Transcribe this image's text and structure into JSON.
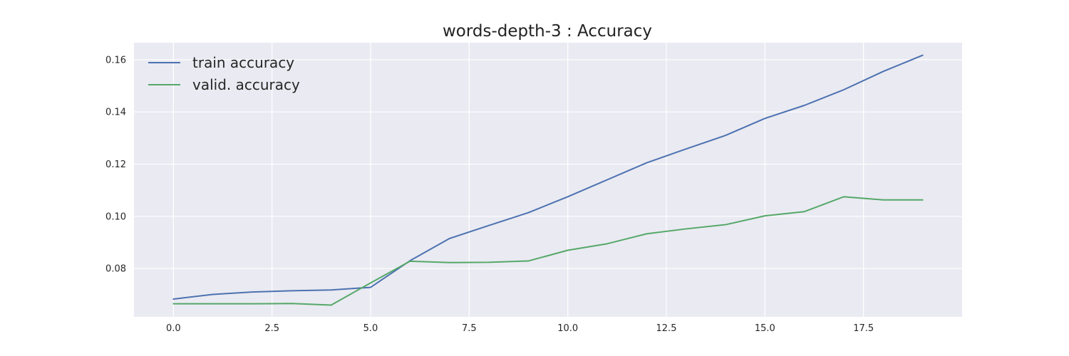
{
  "chart_data": {
    "type": "line",
    "title": "words-depth-3 : Accuracy",
    "xlabel": "",
    "ylabel": "",
    "xlim": [
      -1,
      20
    ],
    "ylim": [
      0.0615,
      0.1665
    ],
    "grid": true,
    "legend_position": "top-left",
    "x_ticks": [
      0.0,
      2.5,
      5.0,
      7.5,
      10.0,
      12.5,
      15.0,
      17.5
    ],
    "x_tick_labels": [
      "0.0",
      "2.5",
      "5.0",
      "7.5",
      "10.0",
      "12.5",
      "15.0",
      "17.5"
    ],
    "y_ticks": [
      0.08,
      0.1,
      0.12,
      0.14,
      0.16
    ],
    "y_tick_labels": [
      "0.08",
      "0.10",
      "0.12",
      "0.14",
      "0.16"
    ],
    "x": [
      0,
      1,
      2,
      3,
      4,
      5,
      6,
      7,
      8,
      9,
      10,
      11,
      12,
      13,
      14,
      15,
      16,
      17,
      18,
      19
    ],
    "series": [
      {
        "name": "train accuracy",
        "color": "#4c72b0",
        "values": [
          0.0683,
          0.0701,
          0.071,
          0.0715,
          0.0718,
          0.0728,
          0.083,
          0.0915,
          0.0965,
          0.1014,
          0.1075,
          0.114,
          0.1205,
          0.1258,
          0.131,
          0.1375,
          0.1425,
          0.1485,
          0.1555,
          0.1617
        ]
      },
      {
        "name": "valid. accuracy",
        "color": "#55a868",
        "values": [
          0.0665,
          0.0665,
          0.0665,
          0.0666,
          0.066,
          0.0745,
          0.0828,
          0.0823,
          0.0824,
          0.0829,
          0.087,
          0.0895,
          0.0933,
          0.0952,
          0.0968,
          0.1002,
          0.1018,
          0.1075,
          0.1063,
          0.1063
        ]
      }
    ]
  }
}
